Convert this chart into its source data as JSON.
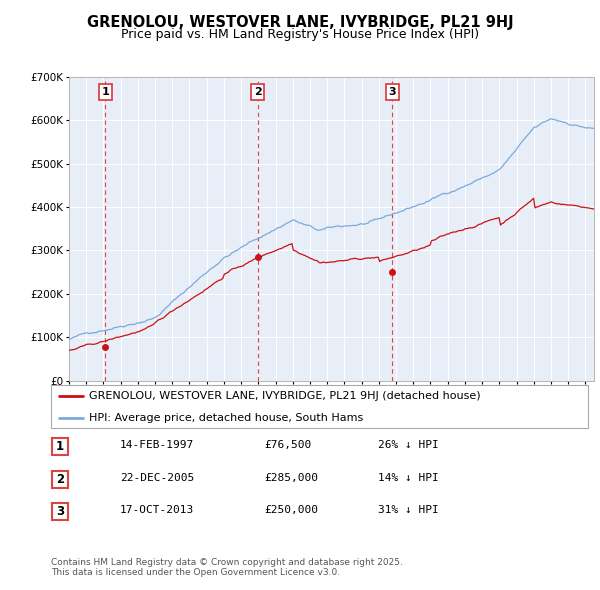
{
  "title": "GRENOLOU, WESTOVER LANE, IVYBRIDGE, PL21 9HJ",
  "subtitle": "Price paid vs. HM Land Registry's House Price Index (HPI)",
  "ylim": [
    0,
    700000
  ],
  "yticks": [
    0,
    100000,
    200000,
    300000,
    400000,
    500000,
    600000,
    700000
  ],
  "background_color": "#ffffff",
  "plot_bg_color": "#e8eef8",
  "grid_color": "#ffffff",
  "hpi_color": "#7aaadd",
  "price_color": "#cc1111",
  "purchase_dates_float": [
    1997.12,
    2005.97,
    2013.79
  ],
  "purchase_prices": [
    76500,
    285000,
    250000
  ],
  "purchase_labels": [
    "1",
    "2",
    "3"
  ],
  "vline_color": "#dd4444",
  "legend_line1": "GRENOLOU, WESTOVER LANE, IVYBRIDGE, PL21 9HJ (detached house)",
  "legend_line2": "HPI: Average price, detached house, South Hams",
  "table_rows": [
    [
      "1",
      "14-FEB-1997",
      "£76,500",
      "26% ↓ HPI"
    ],
    [
      "2",
      "22-DEC-2005",
      "£285,000",
      "14% ↓ HPI"
    ],
    [
      "3",
      "17-OCT-2013",
      "£250,000",
      "31% ↓ HPI"
    ]
  ],
  "footnote": "Contains HM Land Registry data © Crown copyright and database right 2025.\nThis data is licensed under the Open Government Licence v3.0.",
  "title_fontsize": 10.5,
  "subtitle_fontsize": 9,
  "tick_fontsize": 7.5,
  "legend_fontsize": 8,
  "table_fontsize": 8,
  "footnote_fontsize": 6.5
}
